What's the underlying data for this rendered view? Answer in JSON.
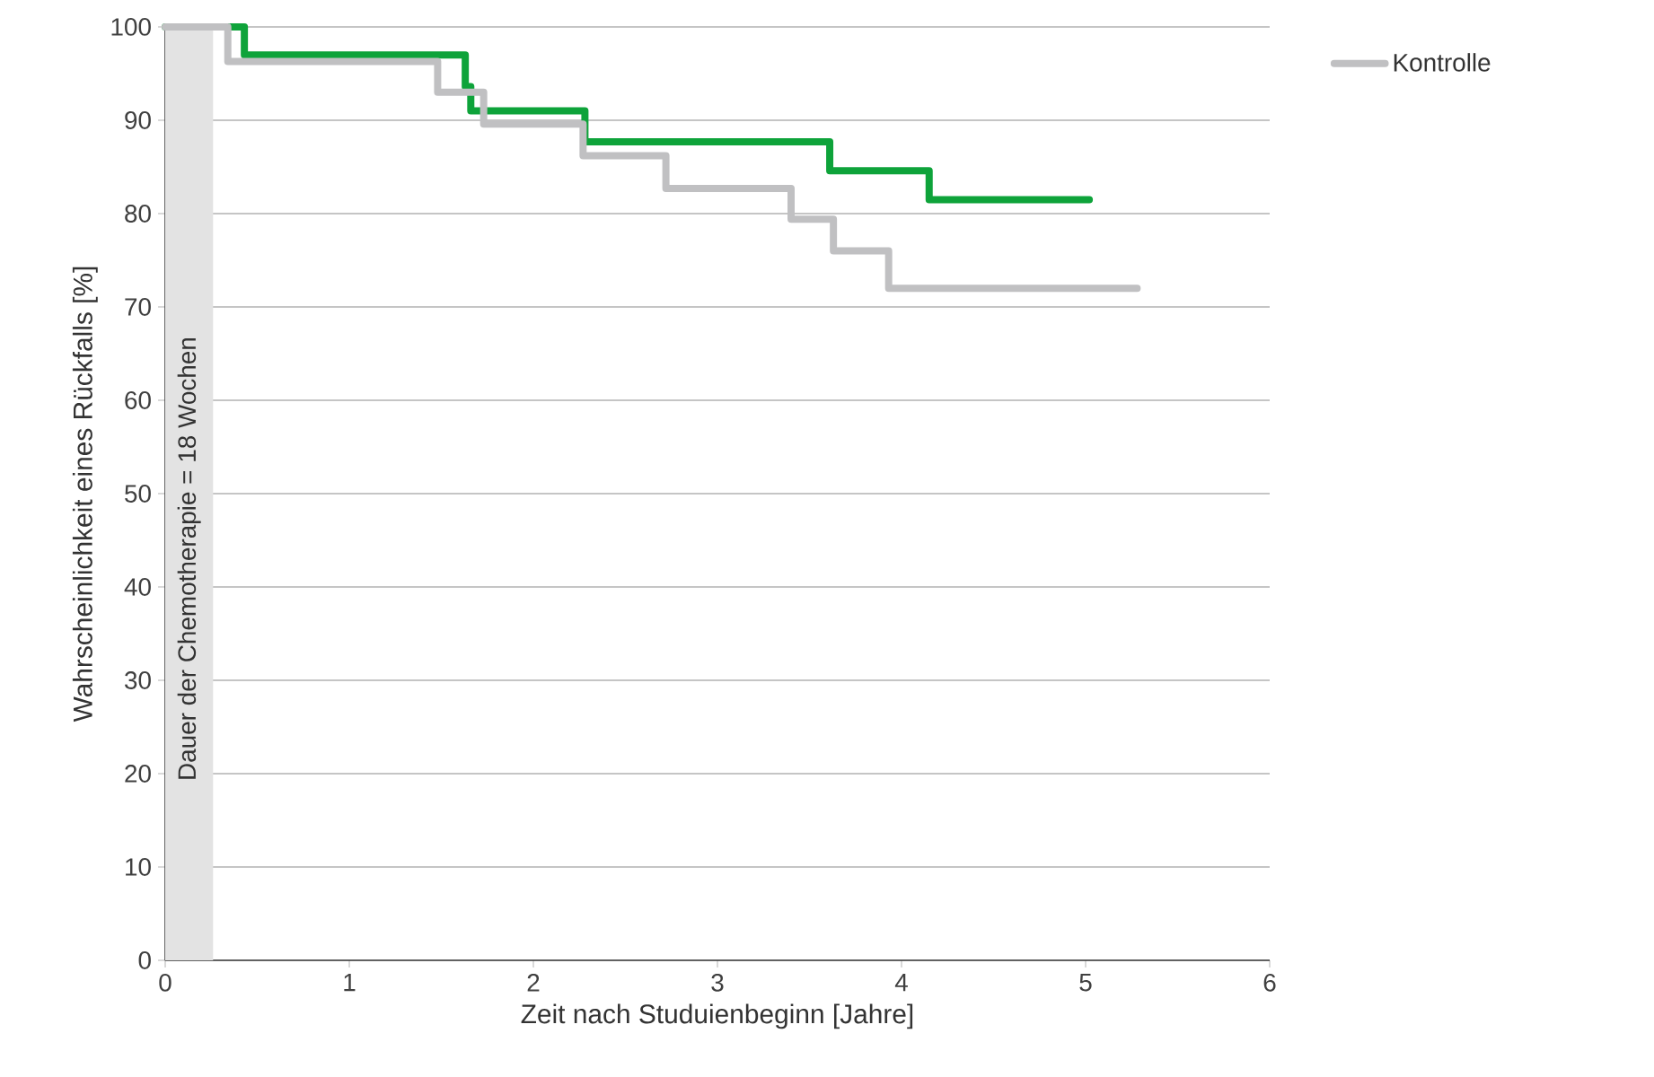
{
  "chart_data": {
    "type": "step",
    "xlabel": "Zeit nach Studuienbeginn [Jahre]",
    "ylabel": "Wahrscheinlichkeit eines Rückfalls [%]",
    "xlim": [
      0,
      6
    ],
    "ylim": [
      0,
      100
    ],
    "xticks": [
      0,
      1,
      2,
      3,
      4,
      5,
      6
    ],
    "yticks": [
      0,
      10,
      20,
      30,
      40,
      50,
      60,
      70,
      80,
      90,
      100
    ],
    "grid": "y",
    "legend": "top right",
    "bands": [
      {
        "axis": "x",
        "from": 0,
        "to": 0.26,
        "label": "Dauer der Chemotherapie = 18 Wochen",
        "color": "#e3e3e3"
      }
    ],
    "series": [
      {
        "color": "#0ea33a",
        "x": [
          0,
          0.43,
          1.63,
          1.66,
          2.28,
          3.61,
          4.15,
          5.02
        ],
        "values": [
          100,
          97,
          93.6,
          91,
          87.7,
          84.6,
          81.5,
          81.5
        ]
      },
      {
        "name": "Kontrolle",
        "color": "#c0c0c2",
        "x": [
          0,
          0.34,
          1.48,
          1.73,
          2.27,
          2.72,
          3.4,
          3.63,
          3.93,
          5.28
        ],
        "values": [
          100,
          96.3,
          93,
          89.6,
          86.2,
          82.7,
          79.4,
          76,
          72,
          72
        ]
      }
    ]
  }
}
